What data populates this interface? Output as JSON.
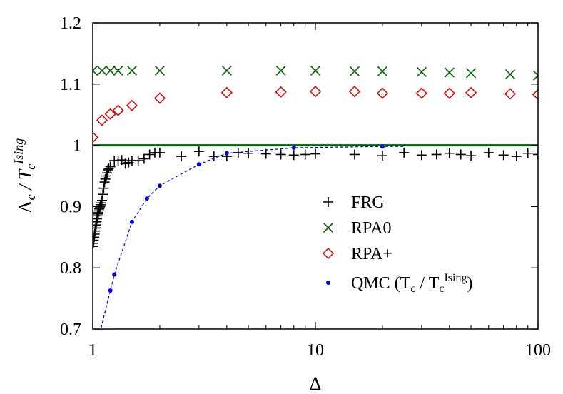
{
  "chart_data": {
    "type": "scatter",
    "title": "",
    "xlabel": "Δ",
    "ylabel_parts": {
      "main": "Λ",
      "sub": "c",
      "sep": " / ",
      "t": "T",
      "tsub": "c",
      "tsup": "Ising"
    },
    "xscale": "log",
    "xlim": [
      1,
      100
    ],
    "ylim": [
      0.7,
      1.2
    ],
    "x_ticks": [
      {
        "value": 1,
        "label": "1"
      },
      {
        "value": 10,
        "label": "10"
      },
      {
        "value": 100,
        "label": "100"
      }
    ],
    "y_ticks": [
      {
        "value": 0.7,
        "label": "0.7"
      },
      {
        "value": 0.8,
        "label": "0.8"
      },
      {
        "value": 0.9,
        "label": "0.9"
      },
      {
        "value": 1.0,
        "label": "1"
      },
      {
        "value": 1.1,
        "label": "1.1"
      },
      {
        "value": 1.2,
        "label": "1.2"
      }
    ],
    "grid": false,
    "legend_position": "bottom-right",
    "reference_line": {
      "y": 1.0,
      "color": "#006400"
    },
    "series": [
      {
        "name": "FRG",
        "marker": "plus",
        "color": "#000000",
        "x": [
          1.0,
          1.005,
          1.01,
          1.015,
          1.02,
          1.025,
          1.03,
          1.035,
          1.04,
          1.045,
          1.05,
          1.055,
          1.06,
          1.065,
          1.07,
          1.075,
          1.08,
          1.085,
          1.09,
          1.1,
          1.11,
          1.12,
          1.13,
          1.14,
          1.15,
          1.16,
          1.17,
          1.18,
          1.2,
          1.25,
          1.3,
          1.35,
          1.4,
          1.45,
          1.5,
          1.6,
          1.7,
          1.8,
          1.9,
          2.0,
          2.5,
          3.0,
          3.5,
          4.0,
          4.5,
          5.0,
          6.0,
          7.0,
          8.0,
          9.0,
          10.0,
          15.0,
          20.0,
          25.0,
          30.0,
          35.0,
          40.0,
          45.0,
          50.0,
          60.0,
          70.0,
          80.0,
          90.0,
          100.0
        ],
        "y": [
          0.835,
          0.84,
          0.845,
          0.85,
          0.855,
          0.86,
          0.865,
          0.87,
          0.875,
          0.88,
          0.885,
          0.888,
          0.89,
          0.893,
          0.896,
          0.898,
          0.9,
          0.903,
          0.906,
          0.91,
          0.92,
          0.93,
          0.94,
          0.945,
          0.95,
          0.955,
          0.96,
          0.962,
          0.965,
          0.975,
          0.975,
          0.976,
          0.97,
          0.972,
          0.975,
          0.975,
          0.978,
          0.985,
          0.988,
          0.988,
          0.982,
          0.99,
          0.982,
          0.982,
          0.988,
          0.987,
          0.986,
          0.985,
          0.984,
          0.985,
          0.986,
          0.985,
          0.983,
          0.988,
          0.984,
          0.985,
          0.987,
          0.985,
          0.983,
          0.988,
          0.984,
          0.982,
          0.987,
          0.985
        ]
      },
      {
        "name": "RPA0",
        "marker": "cross",
        "color": "#006400",
        "x": [
          1.0,
          1.1,
          1.2,
          1.3,
          1.5,
          2.0,
          4.0,
          7.0,
          10.0,
          15.0,
          20.0,
          30.0,
          40.0,
          50.0,
          75.0,
          100.0
        ],
        "y": [
          1.122,
          1.122,
          1.122,
          1.122,
          1.122,
          1.122,
          1.122,
          1.122,
          1.122,
          1.121,
          1.121,
          1.12,
          1.119,
          1.118,
          1.116,
          1.114
        ]
      },
      {
        "name": "RPA+",
        "marker": "diamond",
        "color": "#e00000",
        "x": [
          1.0,
          1.1,
          1.2,
          1.3,
          1.5,
          2.0,
          4.0,
          7.0,
          10.0,
          15.0,
          20.0,
          30.0,
          40.0,
          50.0,
          75.0,
          100.0
        ],
        "y": [
          1.013,
          1.041,
          1.051,
          1.057,
          1.065,
          1.077,
          1.086,
          1.087,
          1.088,
          1.088,
          1.085,
          1.085,
          1.085,
          1.086,
          1.084,
          1.083
        ]
      },
      {
        "name": "QMC (T_c / T_c^Ising)",
        "legend_parts": {
          "a": "QMC (T",
          "b": "c",
          "c": " / T",
          "d": "c",
          "e": "Ising",
          "f": ")"
        },
        "marker": "dot",
        "color": "#0000ee",
        "line": "dashed",
        "x": [
          1.2,
          1.25,
          1.5,
          1.75,
          2.0,
          3.0,
          4.0,
          8.0,
          20.0
        ],
        "y": [
          0.763,
          0.789,
          0.875,
          0.913,
          0.934,
          0.969,
          0.987,
          0.996,
          0.998
        ]
      }
    ]
  }
}
